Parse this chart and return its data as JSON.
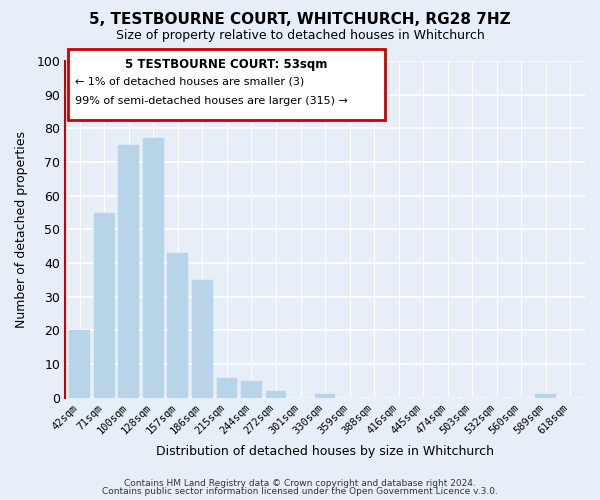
{
  "title": "5, TESTBOURNE COURT, WHITCHURCH, RG28 7HZ",
  "subtitle": "Size of property relative to detached houses in Whitchurch",
  "xlabel": "Distribution of detached houses by size in Whitchurch",
  "ylabel": "Number of detached properties",
  "bar_labels": [
    "42sqm",
    "71sqm",
    "100sqm",
    "128sqm",
    "157sqm",
    "186sqm",
    "215sqm",
    "244sqm",
    "272sqm",
    "301sqm",
    "330sqm",
    "359sqm",
    "388sqm",
    "416sqm",
    "445sqm",
    "474sqm",
    "503sqm",
    "532sqm",
    "560sqm",
    "589sqm",
    "618sqm"
  ],
  "bar_values": [
    20,
    55,
    75,
    77,
    43,
    35,
    6,
    5,
    2,
    0,
    1,
    0,
    0,
    0,
    0,
    0,
    0,
    0,
    0,
    1,
    0
  ],
  "bar_color": "#b8d4e8",
  "highlight_color": "#cc0000",
  "ylim": [
    0,
    100
  ],
  "annotation_box": {
    "title": "5 TESTBOURNE COURT: 53sqm",
    "line1": "← 1% of detached houses are smaller (3)",
    "line2": "99% of semi-detached houses are larger (315) →"
  },
  "footer_lines": [
    "Contains HM Land Registry data © Crown copyright and database right 2024.",
    "Contains public sector information licensed under the Open Government Licence v.3.0."
  ],
  "background_color": "#e8eef8"
}
